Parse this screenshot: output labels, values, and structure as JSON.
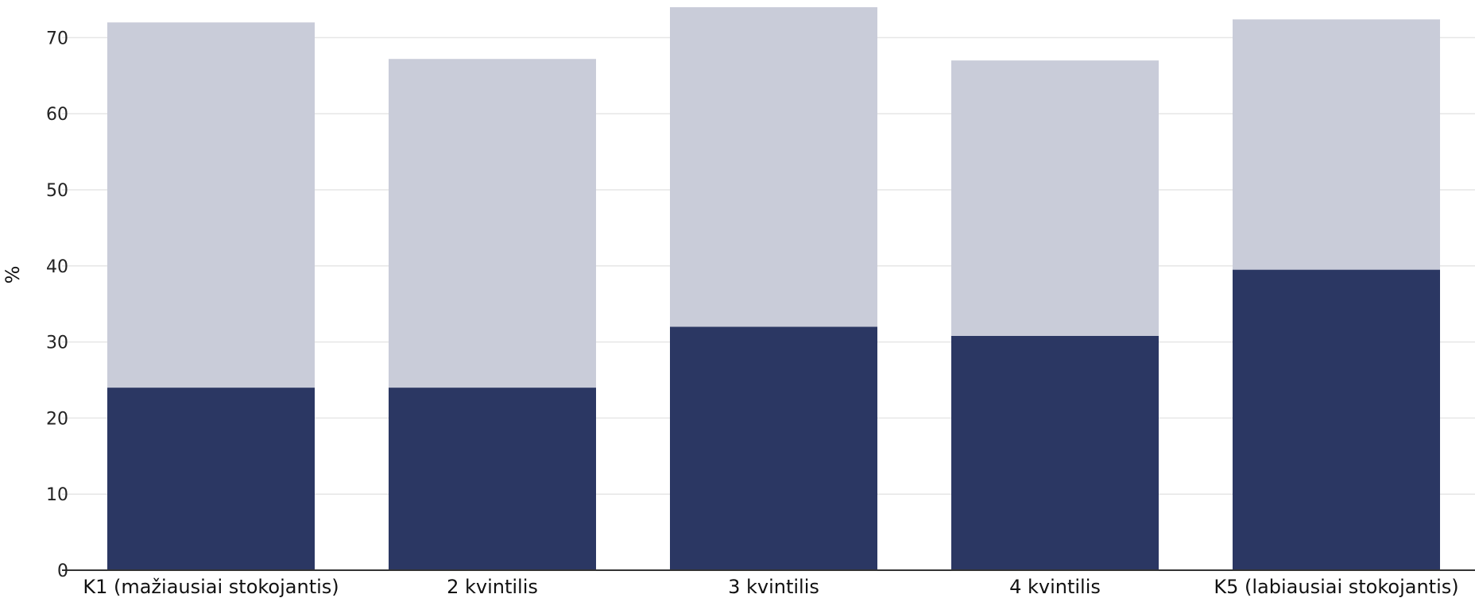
{
  "chart_data": {
    "type": "bar",
    "stacked": true,
    "title": "",
    "xlabel": "",
    "ylabel": "%",
    "ylim": [
      0,
      74
    ],
    "yticks": [
      0,
      10,
      20,
      30,
      40,
      50,
      60,
      70
    ],
    "grid": true,
    "categories": [
      "K1 (mažiausiai stokojantis)",
      "2 kvintilis",
      "3 kvintilis",
      "4 kvintilis",
      "K5 (labiausiai stokojantis)"
    ],
    "series": [
      {
        "values": [
          24.0,
          24.0,
          32.0,
          30.8,
          39.5
        ],
        "color": "#2b3763"
      },
      {
        "values": [
          48.0,
          43.2,
          42.0,
          36.2,
          32.9
        ],
        "color": "#c9ccd9"
      }
    ],
    "colors": {
      "grid": "#e6e6e6",
      "axis": "#333333"
    }
  }
}
